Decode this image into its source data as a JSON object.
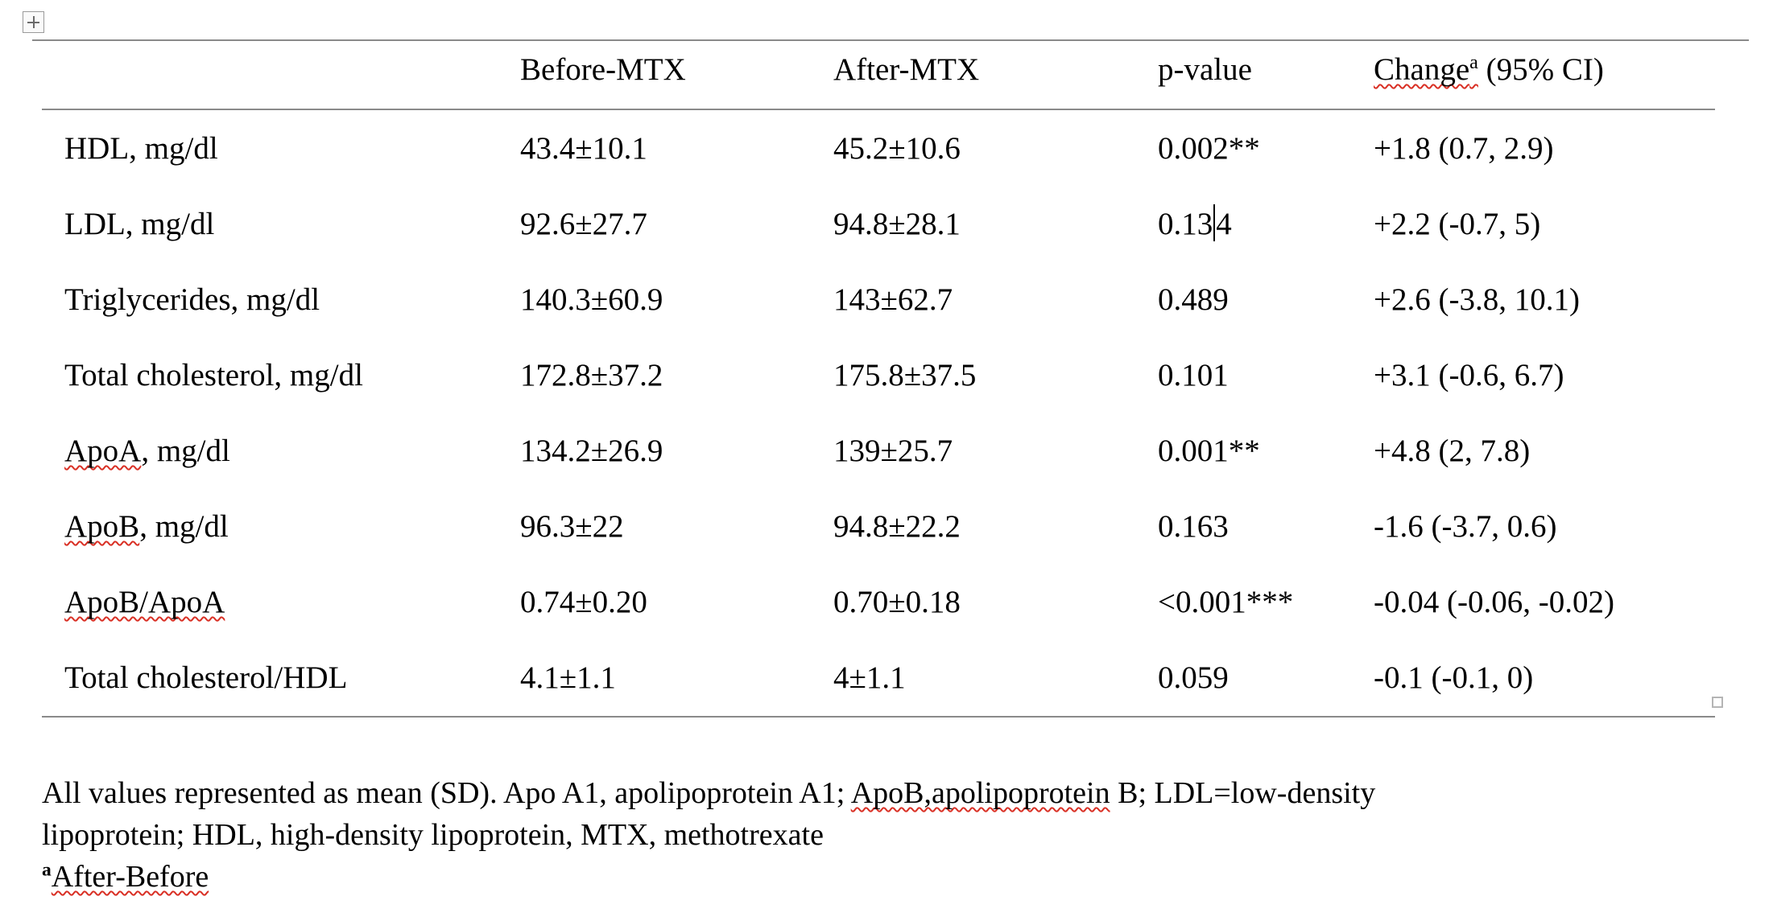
{
  "colors": {
    "background": "#ffffff",
    "text": "#000000",
    "rule": "#8a8a8a",
    "squiggle_red": "#d93025"
  },
  "icons": {
    "table_move_handle": "plus-in-square",
    "table_resize_handle": "small-square"
  },
  "table": {
    "header": {
      "col1": "",
      "col2": "Before-MTX",
      "col3": "After-MTX",
      "col4": "p-value",
      "change_base": "Change",
      "change_sup": "a",
      "change_rest": " (95% CI)"
    },
    "rows": [
      {
        "label_flag": "",
        "label_rest": "HDL, mg/dl",
        "before": "43.4±10.1",
        "after": "45.2±10.6",
        "p": "0.002**",
        "change": "+1.8 (0.7, 2.9)"
      },
      {
        "label_flag": "",
        "label_rest": "LDL, mg/dl",
        "before": "92.6±27.7",
        "after": "94.8±28.1",
        "p_left": "0.13",
        "p_right": "4",
        "change": "+2.2 (-0.7, 5)"
      },
      {
        "label_flag": "",
        "label_rest": "Triglycerides, mg/dl",
        "before": "140.3±60.9",
        "after": "143±62.7",
        "p": "0.489",
        "change": "+2.6 (-3.8, 10.1)"
      },
      {
        "label_flag": "",
        "label_rest": "Total cholesterol, mg/dl",
        "before": "172.8±37.2",
        "after": "175.8±37.5",
        "p": "0.101",
        "change": "+3.1 (-0.6, 6.7)"
      },
      {
        "label_flag": "ApoA",
        "label_rest": ", mg/dl",
        "before": "134.2±26.9",
        "after": "139±25.7",
        "p": "0.001**",
        "change": "+4.8 (2, 7.8)"
      },
      {
        "label_flag": "ApoB",
        "label_rest": ", mg/dl",
        "before": "96.3±22",
        "after": "94.8±22.2",
        "p": "0.163",
        "change": "-1.6 (-3.7, 0.6)"
      },
      {
        "label_flag": "ApoB/ApoA",
        "label_rest": "",
        "before": "0.74±0.20",
        "after": "0.70±0.18",
        "p": "<0.001***",
        "change": "-0.04 (-0.06, -0.02)"
      },
      {
        "label_flag": "",
        "label_rest": "Total cholesterol/HDL",
        "before": "4.1±1.1",
        "after": "4±1.1",
        "p": "0.059",
        "change": "-0.1 (-0.1, 0)"
      }
    ]
  },
  "footnote": {
    "line1_seg1": "All values represented as mean (SD). Apo A1, apolipoprotein A1; ",
    "line1_flag": "ApoB,apolipoprotein",
    "line1_seg2": " B; LDL=low-density",
    "line2": "lipoprotein; HDL, high-density lipoprotein, MTX, methotrexate",
    "line3_sup": "a",
    "line3_flag": "After-Before"
  }
}
